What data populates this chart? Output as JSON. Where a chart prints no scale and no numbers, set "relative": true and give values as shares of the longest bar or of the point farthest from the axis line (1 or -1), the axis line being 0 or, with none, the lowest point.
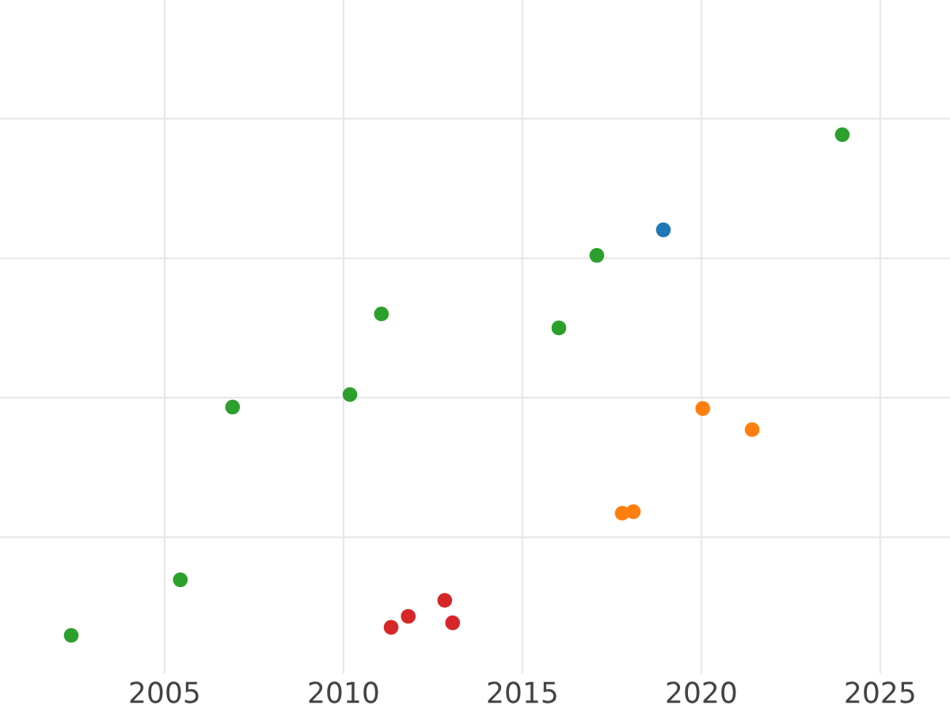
{
  "chart_data": {
    "type": "scatter",
    "relative": true,
    "xlim": [
      2000.4,
      2026.95
    ],
    "xticks": [
      2005,
      2010,
      2015,
      2020,
      2025
    ],
    "grid": true,
    "marker": "circle",
    "tick_labels": "x",
    "series": [
      {
        "color": "#2ca02c",
        "x": [
          2002.39,
          2005.44,
          2006.9,
          2010.18,
          2011.06,
          2016.02,
          2017.08,
          2023.94
        ],
        "values": [
          0,
          0.111,
          0.456,
          0.481,
          0.642,
          0.614,
          0.759,
          1
        ]
      },
      {
        "color": "#1f77b4",
        "x": [
          2018.94
        ],
        "values": [
          0.81
        ]
      },
      {
        "color": "#ff7f0e",
        "x": [
          2017.79,
          2018.1,
          2020.04,
          2021.42
        ],
        "values": [
          0.244,
          0.247,
          0.453,
          0.411
        ]
      },
      {
        "color": "#d62728",
        "x": [
          2011.33,
          2011.81,
          2012.83,
          2013.05
        ],
        "values": [
          0.016,
          0.038,
          0.07,
          0.025
        ]
      }
    ]
  }
}
